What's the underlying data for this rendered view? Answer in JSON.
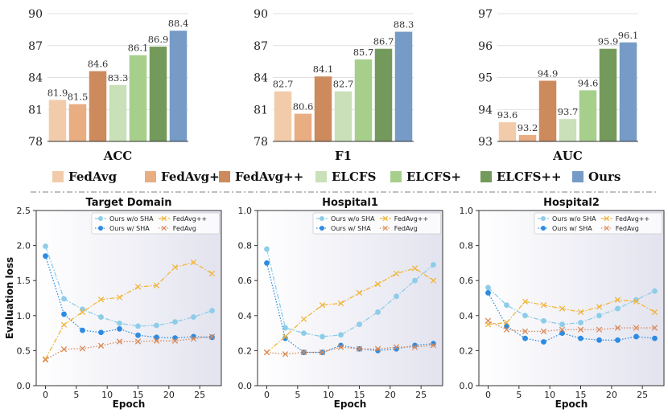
{
  "legend_items": [
    {
      "label": "FedAvg",
      "color": "#F2CCAA"
    },
    {
      "label": "FedAvg+",
      "color": "#E9AD82"
    },
    {
      "label": "FedAvg++",
      "color": "#CD8A5C"
    },
    {
      "label": "ELCFS",
      "color": "#C9E0B9"
    },
    {
      "label": "ELCFS+",
      "color": "#A6CF8C"
    },
    {
      "label": "ELCFS++",
      "color": "#749A5B"
    },
    {
      "label": "Ours",
      "color": "#769BC6"
    }
  ],
  "line_series_style": [
    {
      "name": "Ours w/o SHA",
      "color": "#8ECDE9",
      "marker": "circle",
      "dash": "dash-dot"
    },
    {
      "name": "Ours w/ SHA",
      "color": "#2E8BE0",
      "marker": "circle",
      "dash": "dotted"
    },
    {
      "name": "FedAvg++",
      "color": "#F2B63B",
      "marker": "x",
      "dash": "dash-dot"
    },
    {
      "name": "FedAvg",
      "color": "#D98B5A",
      "marker": "x",
      "dash": "dotted"
    }
  ],
  "chart_data": [
    {
      "type": "bar",
      "title": "",
      "xlabel": "ACC",
      "ylabel": "",
      "categories": [
        "FedAvg",
        "FedAvg+",
        "FedAvg++",
        "ELCFS",
        "ELCFS+",
        "ELCFS++",
        "Ours"
      ],
      "values": [
        81.9,
        81.5,
        84.6,
        83.3,
        86.1,
        86.9,
        88.4
      ],
      "value_labels": [
        "81.9",
        "81.5",
        "84.6",
        "83.3",
        "86.1",
        "86.9",
        "88.4"
      ],
      "ylim": [
        78,
        90
      ],
      "yticks": [
        "78",
        "81",
        "84",
        "87",
        "90"
      ]
    },
    {
      "type": "bar",
      "title": "",
      "xlabel": "F1",
      "ylabel": "",
      "categories": [
        "FedAvg",
        "FedAvg+",
        "FedAvg++",
        "ELCFS",
        "ELCFS+",
        "ELCFS++",
        "Ours"
      ],
      "values": [
        82.7,
        80.6,
        84.1,
        82.7,
        85.7,
        86.7,
        88.3
      ],
      "value_labels": [
        "82.7",
        "80.6",
        "84.1",
        "82.7",
        "85.7",
        "86.7",
        "88.3"
      ],
      "ylim": [
        78,
        90
      ],
      "yticks": [
        "78",
        "81",
        "84",
        "87",
        "90"
      ]
    },
    {
      "type": "bar",
      "title": "",
      "xlabel": "AUC",
      "ylabel": "",
      "categories": [
        "FedAvg",
        "FedAvg+",
        "FedAvg++",
        "ELCFS",
        "ELCFS+",
        "ELCFS++",
        "Ours"
      ],
      "values": [
        93.6,
        93.2,
        94.9,
        93.7,
        94.6,
        95.9,
        96.1
      ],
      "value_labels": [
        "93.6",
        "93.2",
        "94.9",
        "93.7",
        "94.6",
        "95.9",
        "96.1"
      ],
      "ylim": [
        93,
        97
      ],
      "yticks": [
        "93",
        "94",
        "95",
        "96",
        "97"
      ]
    },
    {
      "type": "line",
      "title": "Target Domain",
      "xlabel": "Epoch",
      "ylabel": "Evaluation loss",
      "x": [
        0,
        3,
        6,
        9,
        12,
        15,
        18,
        21,
        24,
        27
      ],
      "xticks": [
        "0",
        "5",
        "10",
        "15",
        "20",
        "25"
      ],
      "ylim": [
        0.0,
        2.5
      ],
      "yticks": [
        "0.0",
        "0.5",
        "1.0",
        "1.5",
        "2.0",
        "2.5"
      ],
      "series": [
        {
          "name": "Ours w/o SHA",
          "values": [
            1.99,
            1.24,
            1.09,
            0.98,
            0.89,
            0.85,
            0.86,
            0.91,
            0.98,
            1.07
          ]
        },
        {
          "name": "Ours w/ SHA",
          "values": [
            1.85,
            1.02,
            0.79,
            0.76,
            0.81,
            0.72,
            0.69,
            0.68,
            0.7,
            0.69
          ]
        },
        {
          "name": "FedAvg++",
          "values": [
            0.38,
            0.87,
            1.05,
            1.23,
            1.26,
            1.41,
            1.43,
            1.69,
            1.76,
            1.6
          ]
        },
        {
          "name": "FedAvg",
          "values": [
            0.37,
            0.52,
            0.53,
            0.57,
            0.63,
            0.63,
            0.64,
            0.64,
            0.67,
            0.7
          ]
        }
      ]
    },
    {
      "type": "line",
      "title": "Hospital1",
      "xlabel": "Epoch",
      "ylabel": "",
      "x": [
        0,
        3,
        6,
        9,
        12,
        15,
        18,
        21,
        24,
        27
      ],
      "xticks": [
        "0",
        "5",
        "10",
        "15",
        "20",
        "25"
      ],
      "ylim": [
        0.0,
        1.0
      ],
      "yticks": [
        "0.0",
        "0.2",
        "0.4",
        "0.6",
        "0.8",
        "1.0"
      ],
      "series": [
        {
          "name": "Ours w/o SHA",
          "values": [
            0.78,
            0.33,
            0.3,
            0.28,
            0.29,
            0.35,
            0.42,
            0.51,
            0.6,
            0.69
          ]
        },
        {
          "name": "Ours w/ SHA",
          "values": [
            0.7,
            0.27,
            0.19,
            0.19,
            0.23,
            0.21,
            0.2,
            0.21,
            0.23,
            0.24
          ]
        },
        {
          "name": "FedAvg++",
          "values": [
            0.19,
            0.28,
            0.38,
            0.46,
            0.47,
            0.53,
            0.58,
            0.64,
            0.67,
            0.6
          ]
        },
        {
          "name": "FedAvg",
          "values": [
            0.19,
            0.18,
            0.19,
            0.19,
            0.22,
            0.21,
            0.21,
            0.22,
            0.22,
            0.23
          ]
        }
      ]
    },
    {
      "type": "line",
      "title": "Hospital2",
      "xlabel": "Epoch",
      "ylabel": "",
      "x": [
        0,
        3,
        6,
        9,
        12,
        15,
        18,
        21,
        24,
        27
      ],
      "xticks": [
        "0",
        "5",
        "10",
        "15",
        "20",
        "25"
      ],
      "ylim": [
        0.0,
        1.0
      ],
      "yticks": [
        "0.0",
        "0.2",
        "0.4",
        "0.6",
        "0.8",
        "1.0"
      ],
      "series": [
        {
          "name": "Ours w/o SHA",
          "values": [
            0.56,
            0.46,
            0.4,
            0.37,
            0.35,
            0.36,
            0.4,
            0.44,
            0.49,
            0.54
          ]
        },
        {
          "name": "Ours w/ SHA",
          "values": [
            0.53,
            0.34,
            0.27,
            0.25,
            0.3,
            0.27,
            0.26,
            0.26,
            0.28,
            0.27
          ]
        },
        {
          "name": "FedAvg++",
          "values": [
            0.35,
            0.36,
            0.48,
            0.46,
            0.44,
            0.42,
            0.45,
            0.49,
            0.48,
            0.42
          ]
        },
        {
          "name": "FedAvg",
          "values": [
            0.37,
            0.32,
            0.31,
            0.31,
            0.32,
            0.32,
            0.32,
            0.33,
            0.33,
            0.33
          ]
        }
      ]
    }
  ]
}
